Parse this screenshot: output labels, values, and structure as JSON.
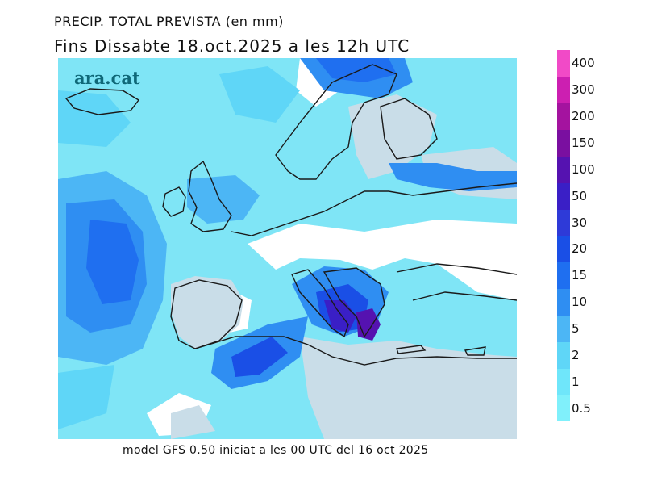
{
  "header": {
    "title_line1": "PRECIP. TOTAL PREVISTA (en mm)",
    "title_line2": "Fins Dissabte  18.oct.2025 a les 12h UTC"
  },
  "brand": {
    "logo_text": "ara.cat"
  },
  "footer": {
    "model_line": "model GFS 0.50 iniciat a les 00 UTC del 16 oct 2025"
  },
  "colors": {
    "land_no_rain": "#c9dde8",
    "sea_no_rain": "#ffffff",
    "coastline": "#1a1a1a"
  },
  "legend": {
    "unit": "mm",
    "bins": [
      {
        "label": "0.5",
        "color": "#80f0fb"
      },
      {
        "label": "1",
        "color": "#6fe6fa"
      },
      {
        "label": "2",
        "color": "#5fd6f7"
      },
      {
        "label": "5",
        "color": "#4cb6f5"
      },
      {
        "label": "10",
        "color": "#2f8ef2"
      },
      {
        "label": "15",
        "color": "#1f6ff0"
      },
      {
        "label": "20",
        "color": "#1a4fe6"
      },
      {
        "label": "30",
        "color": "#2e3ad8"
      },
      {
        "label": "50",
        "color": "#3a1fc6"
      },
      {
        "label": "100",
        "color": "#5512b0"
      },
      {
        "label": "150",
        "color": "#7a0fa0"
      },
      {
        "label": "200",
        "color": "#a4139f"
      },
      {
        "label": "300",
        "color": "#cc1fb1"
      },
      {
        "label": "400",
        "color": "#f14ac7"
      }
    ]
  }
}
